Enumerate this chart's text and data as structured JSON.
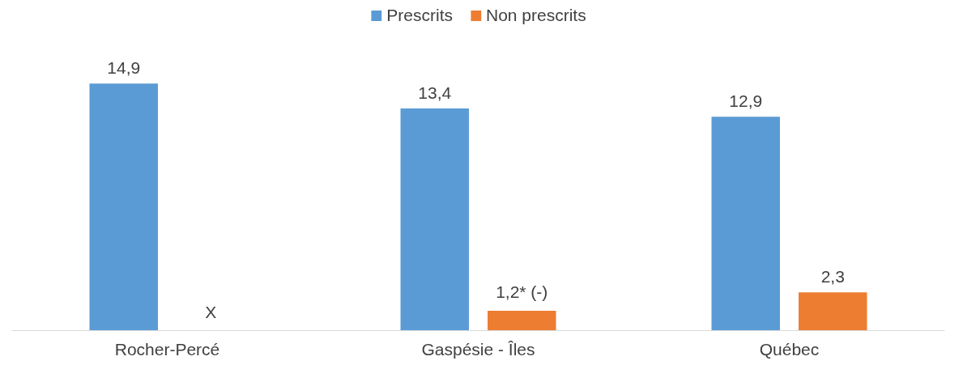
{
  "chart_data": {
    "type": "bar",
    "categories": [
      "Rocher-Percé",
      "Gaspésie - Îles",
      "Québec"
    ],
    "series": [
      {
        "name": "Prescrits",
        "color": "#5b9bd5",
        "values": [
          14.9,
          13.4,
          12.9
        ],
        "value_labels": [
          "14,9",
          "13,4",
          "12,9"
        ]
      },
      {
        "name": "Non prescrits",
        "color": "#ed7d31",
        "values": [
          null,
          1.2,
          2.3
        ],
        "value_labels": [
          "X",
          "1,2* (-)",
          "2,3"
        ]
      }
    ],
    "legend": "top"
  }
}
